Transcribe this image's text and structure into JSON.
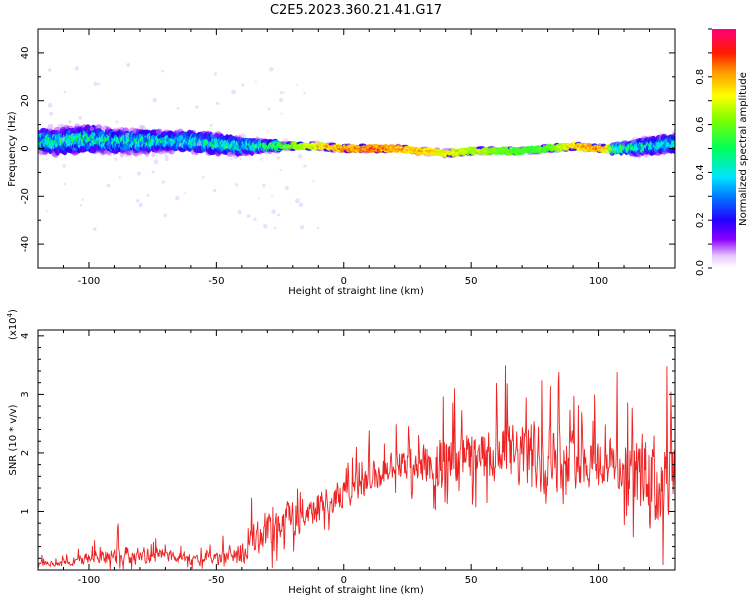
{
  "figure": {
    "title": "C2E5.2023.360.21.41.G17"
  },
  "chart_data": [
    {
      "type": "heatmap",
      "title": "",
      "xlabel": "Height of straight line (km)",
      "ylabel": "Frequency (Hz)",
      "xlim": [
        -120,
        130
      ],
      "ylim": [
        -50,
        50
      ],
      "xticks": [
        -100,
        -50,
        0,
        50,
        100
      ],
      "xtick_labels": [
        "-100",
        "-50",
        "0",
        "50",
        "100"
      ],
      "yticks": [
        -40,
        -20,
        0,
        20,
        40
      ],
      "ytick_labels": [
        "-40",
        "-20",
        "0",
        "20",
        "40"
      ],
      "colorbar": {
        "label": "Normalized spectral amplitude",
        "range": [
          0,
          1
        ],
        "ticks": [
          0,
          0.2,
          0.4,
          0.6,
          0.8
        ],
        "tick_labels": [
          "0.0",
          "0.2",
          "0.4",
          "0.6",
          "0.8"
        ],
        "colormap": "rainbow"
      },
      "ridge": {
        "x": [
          -120,
          -110,
          -100,
          -90,
          -80,
          -70,
          -60,
          -50,
          -40,
          -30,
          -20,
          -10,
          0,
          10,
          20,
          30,
          40,
          50,
          60,
          70,
          80,
          90,
          100,
          110,
          120,
          130
        ],
        "center_hz": [
          3,
          3,
          4,
          3,
          3,
          3,
          3,
          2,
          1,
          1,
          1,
          1,
          0,
          0,
          0,
          -1,
          -2,
          -1,
          -1,
          -1,
          0,
          1,
          0,
          0,
          1,
          2
        ],
        "halfwidth_hz": [
          7,
          8,
          8,
          7,
          7,
          6,
          6,
          6,
          5,
          3,
          2,
          2,
          2,
          2,
          2,
          2,
          2,
          2,
          2,
          2,
          2,
          2,
          2,
          3,
          5,
          6
        ],
        "peak_amplitude": [
          0.45,
          0.5,
          0.5,
          0.45,
          0.5,
          0.45,
          0.45,
          0.5,
          0.45,
          0.55,
          0.65,
          0.75,
          0.85,
          0.9,
          0.85,
          0.8,
          0.75,
          0.7,
          0.65,
          0.6,
          0.6,
          0.8,
          0.85,
          0.6,
          0.45,
          0.4
        ]
      }
    },
    {
      "type": "line",
      "title": "",
      "xlabel": "Height of straight line (km)",
      "ylabel": "SNR (10 * v/v)",
      "y_scale_label": "(x10",
      "y_scale_exponent": "4",
      "y_scale_close": ")",
      "xlim": [
        -120,
        130
      ],
      "ylim": [
        0,
        4.1
      ],
      "xticks": [
        -100,
        -50,
        0,
        50,
        100
      ],
      "xtick_labels": [
        "-100",
        "-50",
        "0",
        "50",
        "100"
      ],
      "yticks": [
        1,
        2,
        3,
        4
      ],
      "ytick_labels": [
        "1",
        "2",
        "3",
        "4"
      ],
      "color": "#ee2222",
      "series": [
        {
          "envelope_x": [
            -120,
            -110,
            -100,
            -90,
            -80,
            -70,
            -60,
            -50,
            -45,
            -40,
            -35,
            -30,
            -25,
            -20,
            -10,
            0,
            10,
            20,
            30,
            40,
            50,
            60,
            70,
            80,
            90,
            100,
            110,
            115,
            120,
            125,
            130
          ],
          "envelope_y": [
            0.1,
            0.12,
            0.2,
            0.25,
            0.25,
            0.25,
            0.2,
            0.2,
            0.25,
            0.3,
            0.5,
            0.7,
            0.8,
            0.9,
            1.1,
            1.3,
            1.55,
            1.75,
            1.85,
            1.9,
            1.9,
            1.95,
            1.95,
            1.95,
            1.9,
            1.85,
            1.75,
            1.6,
            1.5,
            1.45,
            1.5
          ],
          "jitter": [
            0.06,
            0.06,
            0.15,
            0.2,
            0.18,
            0.15,
            0.12,
            0.12,
            0.2,
            0.3,
            0.35,
            0.45,
            0.45,
            0.4,
            0.35,
            0.3,
            0.35,
            0.4,
            0.45,
            0.55,
            0.6,
            0.65,
            0.7,
            0.8,
            0.6,
            0.55,
            0.7,
            0.9,
            1.0,
            1.0,
            0.9
          ]
        }
      ]
    }
  ]
}
